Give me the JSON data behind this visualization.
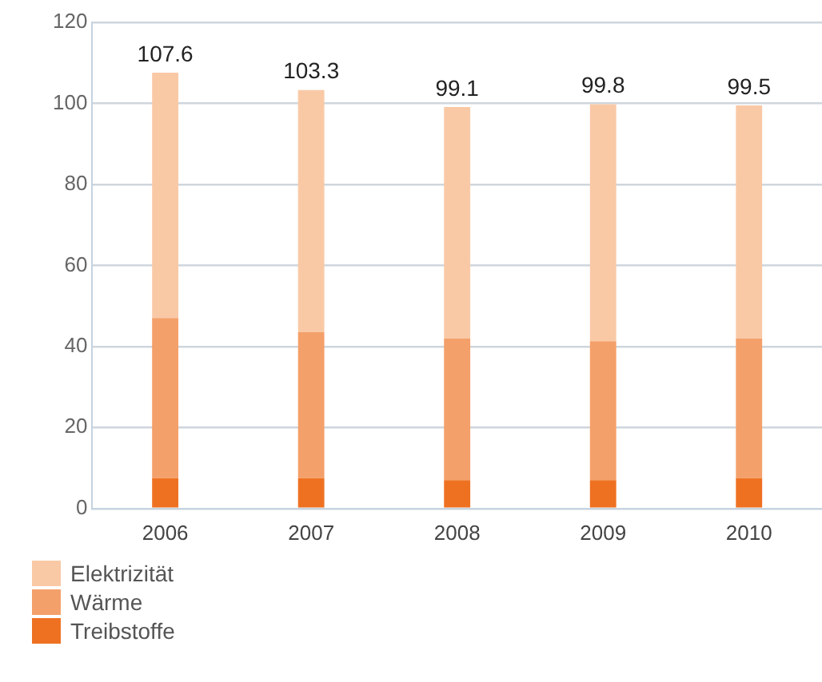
{
  "chart_data": {
    "type": "bar",
    "stacked": true,
    "categories": [
      "2006",
      "2007",
      "2008",
      "2009",
      "2010"
    ],
    "series": [
      {
        "name": "Treibstoffe",
        "color": "#ee7122",
        "values": [
          7.5,
          7.5,
          7,
          7,
          7.5
        ]
      },
      {
        "name": "Wärme",
        "color": "#f4a06a",
        "values": [
          39.5,
          36,
          35,
          34.3,
          34.5
        ]
      },
      {
        "name": "Elektrizität",
        "color": "#f9c9a6",
        "values": [
          60.6,
          59.8,
          57.1,
          58.5,
          57.5
        ]
      }
    ],
    "totals": [
      "107.6",
      "103.3",
      "99.1",
      "99.8",
      "99.5"
    ],
    "ylim": [
      0,
      120
    ],
    "yticks": [
      0,
      20,
      40,
      60,
      80,
      100,
      120
    ],
    "grid": "y",
    "legend": "bottom left"
  }
}
